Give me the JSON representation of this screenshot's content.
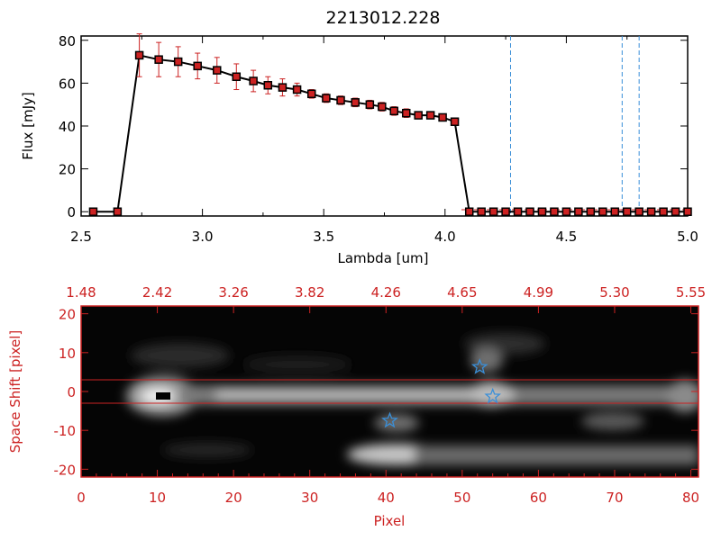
{
  "chart_data": [
    {
      "type": "line",
      "title": "2213012.228",
      "xlabel": "Lambda [um]",
      "ylabel": "Flux [mJy]",
      "xlim": [
        2.5,
        5.0
      ],
      "ylim": [
        -2,
        82
      ],
      "x_ticks": [
        "2.5",
        "3.0",
        "3.5",
        "4.0",
        "4.5",
        "5.0"
      ],
      "y_ticks": [
        "0",
        "20",
        "40",
        "60",
        "80"
      ],
      "dashed_vlines": [
        4.27,
        4.73,
        4.8
      ],
      "colors": {
        "line": "#000000",
        "marker": "#cc2222",
        "error": "#cc2222",
        "vline": "#3a8fd8",
        "baseline": "#cc2222"
      },
      "series": [
        {
          "x": [
            2.55,
            2.65,
            2.74,
            2.82,
            2.9,
            2.98,
            3.06,
            3.14,
            3.21,
            3.27,
            3.33,
            3.39,
            3.45,
            3.51,
            3.57,
            3.63,
            3.69,
            3.74,
            3.79,
            3.84,
            3.89,
            3.94,
            3.99,
            4.04,
            4.1,
            4.15,
            4.2,
            4.25,
            4.3,
            4.35,
            4.4,
            4.45,
            4.5,
            4.55,
            4.6,
            4.65,
            4.7,
            4.75,
            4.8,
            4.85,
            4.9,
            4.95,
            5.0
          ],
          "y": [
            0,
            0,
            73,
            71,
            70,
            68,
            66,
            63,
            61,
            59,
            58,
            57,
            55,
            53,
            52,
            51,
            50,
            49,
            47,
            46,
            45,
            45,
            44,
            42,
            0,
            0,
            0,
            0,
            0,
            0,
            0,
            0,
            0,
            0,
            0,
            0,
            0,
            0,
            0,
            0,
            0,
            0,
            0
          ],
          "err": [
            0,
            0,
            10,
            8,
            7,
            6,
            6,
            6,
            5,
            4,
            4,
            3,
            2,
            2,
            2,
            2,
            2,
            2,
            2,
            2,
            1,
            1,
            1,
            1,
            0,
            0,
            0,
            0,
            0,
            0,
            0,
            0,
            0,
            0,
            0,
            0,
            0,
            0,
            0,
            0,
            0,
            0,
            0
          ]
        }
      ]
    },
    {
      "type": "heatmap",
      "xlabel": "Pixel",
      "ylabel": "Space Shift [pixel]",
      "xlim": [
        0,
        81
      ],
      "ylim": [
        -22,
        22
      ],
      "x_ticks": [
        "0",
        "10",
        "20",
        "30",
        "40",
        "50",
        "60",
        "70",
        "80"
      ],
      "y_ticks": [
        "-20",
        "-10",
        "0",
        "10",
        "20"
      ],
      "top_ticks": [
        "1.48",
        "2.42",
        "3.26",
        "3.82",
        "4.26",
        "4.65",
        "4.99",
        "5.30",
        "5.55"
      ],
      "extraction_lines": [
        3,
        -3
      ],
      "stars": [
        {
          "x": 52.3,
          "y": 6.3
        },
        {
          "x": 54.0,
          "y": -1.3
        },
        {
          "x": 40.5,
          "y": -7.5
        }
      ],
      "colors": {
        "axis": "#cc2222",
        "star": "#3a8fd8",
        "line": "#cc2222"
      }
    }
  ]
}
